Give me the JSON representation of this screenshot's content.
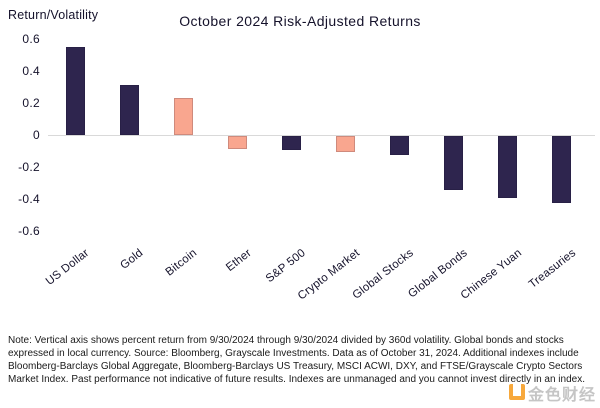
{
  "chart": {
    "title": "October 2024 Risk-Adjusted Returns",
    "y_axis_title": "Return/Volatility"
  },
  "chart_data": {
    "type": "bar",
    "title": "October 2024 Risk-Adjusted Returns",
    "xlabel": "",
    "ylabel": "Return/Volatility",
    "categories": [
      "US Dollar",
      "Gold",
      "Bitcoin",
      "Ether",
      "S&P 500",
      "Crypto Market",
      "Global Stocks",
      "Global Bonds",
      "Chinese Yuan",
      "Treasuries"
    ],
    "values": [
      0.55,
      0.31,
      0.23,
      -0.08,
      -0.09,
      -0.1,
      -0.12,
      -0.34,
      -0.39,
      -0.42
    ],
    "bar_colors": [
      "#2e254e",
      "#2e254e",
      "#f9a68f",
      "#f9a68f",
      "#2e254e",
      "#f9a68f",
      "#2e254e",
      "#2e254e",
      "#2e254e",
      "#2e254e"
    ],
    "ylim": [
      -0.6,
      0.6
    ],
    "yticks": [
      0.6,
      0.4,
      0.2,
      0,
      -0.2,
      -0.4,
      -0.6
    ],
    "grid": false,
    "legend": "none",
    "colors": {
      "dark_navy": "#2e254e",
      "salmon": "#f9a68f",
      "zero_line": "#d9d9d9"
    }
  },
  "note": {
    "text": "Note: Vertical axis shows percent return from 9/30/2024 through 9/30/2024 divided by 360d volatility. Global bonds and stocks expressed in local currency. Source: Bloomberg, Grayscale Investments. Data as of October 31, 2024. Additional indexes include Bloomberg-Barclays Global Aggregate, Bloomberg-Barclays US Treasury, MSCI ACWI, DXY, and FTSE/Grayscale Crypto Sectors Market Index. Past performance not indicative of future results. Indexes are unmanaged and you cannot invest directly in an index."
  },
  "watermark": {
    "text": "金色财经",
    "logo_color": "#f6991b"
  }
}
